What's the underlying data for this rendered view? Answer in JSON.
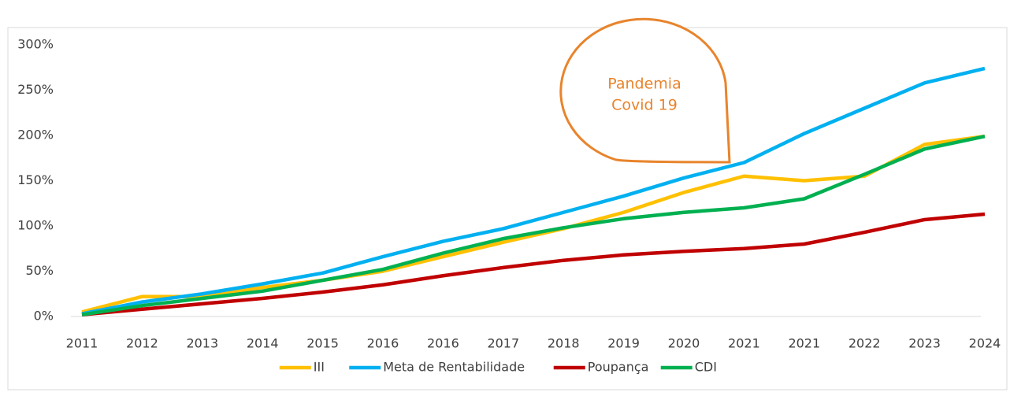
{
  "chart_data": {
    "type": "line",
    "categories": [
      "2011",
      "2012",
      "2013",
      "2014",
      "2015",
      "2016",
      "2016",
      "2017",
      "2018",
      "2019",
      "2020",
      "2021",
      "2021",
      "2022",
      "2023",
      "2024"
    ],
    "series": [
      {
        "name": "III",
        "color": "#ffc000",
        "values": [
          5,
          22,
          22,
          32,
          40,
          50,
          66,
          82,
          97,
          115,
          137,
          155,
          150,
          155,
          190,
          199
        ]
      },
      {
        "name": "Meta de Rentabilidade",
        "color": "#00b0f0",
        "values": [
          3,
          16,
          25,
          36,
          48,
          66,
          83,
          97,
          115,
          133,
          153,
          170,
          202,
          230,
          258,
          274
        ]
      },
      {
        "name": "Poupança",
        "color": "#c00000",
        "values": [
          2,
          8,
          14,
          20,
          27,
          35,
          45,
          54,
          62,
          68,
          72,
          75,
          80,
          93,
          107,
          113
        ]
      },
      {
        "name": "CDI",
        "color": "#00b050",
        "values": [
          2,
          12,
          20,
          28,
          40,
          52,
          70,
          86,
          98,
          108,
          115,
          120,
          130,
          157,
          185,
          199
        ]
      }
    ],
    "ylim": [
      0,
      300
    ],
    "yticks": [
      {
        "value": 0,
        "label": "0%"
      },
      {
        "value": 50,
        "label": "50%"
      },
      {
        "value": 100,
        "label": "100%"
      },
      {
        "value": 150,
        "label": "150%"
      },
      {
        "value": 200,
        "label": "200%"
      },
      {
        "value": 250,
        "label": "250%"
      },
      {
        "value": 300,
        "label": "300%"
      }
    ],
    "annotation": {
      "lines": [
        "Pandemia",
        "Covid 19"
      ],
      "color": "#e8842c"
    },
    "legend": "bottom"
  }
}
